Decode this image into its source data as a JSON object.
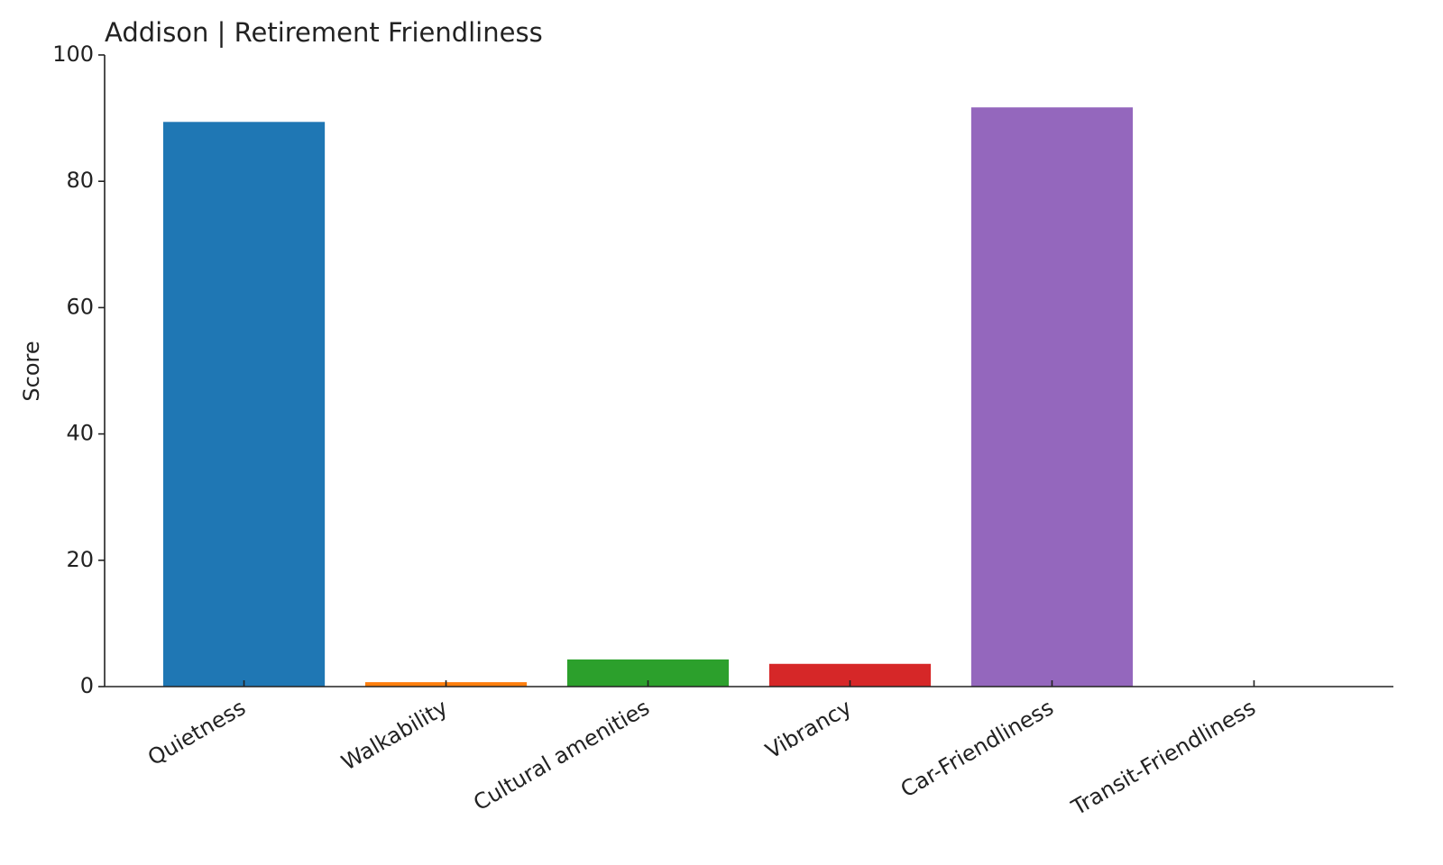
{
  "chart_data": {
    "type": "bar",
    "title": "Addison | Retirement Friendliness",
    "y_label": "Score",
    "categories": [
      "Quietness",
      "Walkability",
      "Cultural amenities",
      "Vibrancy",
      "Car-Friendliness",
      "Transit-Friendliness"
    ],
    "values": [
      89.4,
      0.7,
      4.3,
      3.6,
      91.7,
      0
    ],
    "colors": [
      "#1f77b4",
      "#ff7f0e",
      "#2ca02c",
      "#d62728",
      "#9467bd",
      "#8c564b"
    ],
    "ylim": [
      0,
      100
    ],
    "yticks": [
      0,
      20,
      40,
      60,
      80,
      100
    ],
    "grid": false
  }
}
